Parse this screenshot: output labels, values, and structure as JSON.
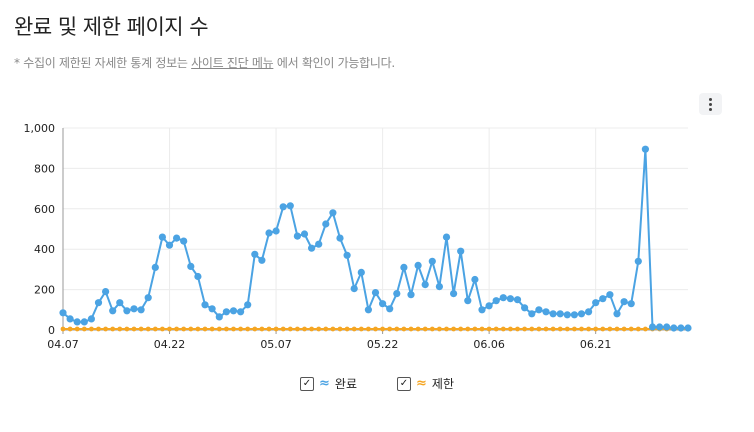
{
  "page": {
    "title": "완료 및 제한 페이지 수",
    "note_prefix": "* 수집이 제한된 자세한 통계 정보는",
    "note_link": "사이트 진단 메뉴",
    "note_suffix": "에서 확인이 가능합니다."
  },
  "menu": {
    "icon": "more-vertical-icon"
  },
  "legend": {
    "items": [
      {
        "label": "완료",
        "checked": true,
        "color": "#4ba3e3",
        "icon": "wave-icon"
      },
      {
        "label": "제한",
        "checked": true,
        "color": "#f5a623",
        "icon": "wave-icon"
      }
    ]
  },
  "chart_data": {
    "type": "line",
    "ylim": [
      0,
      1000
    ],
    "y_ticks": [
      "0",
      "200",
      "400",
      "600",
      "800",
      "1,000"
    ],
    "x_ticks": [
      {
        "label": "04.07",
        "index": 0
      },
      {
        "label": "04.22",
        "index": 15
      },
      {
        "label": "05.07",
        "index": 30
      },
      {
        "label": "05.22",
        "index": 45
      },
      {
        "label": "06.06",
        "index": 60
      },
      {
        "label": "06.21",
        "index": 75
      }
    ],
    "grid": true,
    "legend_position": "bottom",
    "series": [
      {
        "name": "완료",
        "color": "#4ba3e3",
        "values": [
          85,
          55,
          40,
          40,
          55,
          135,
          190,
          95,
          135,
          95,
          105,
          100,
          160,
          310,
          460,
          420,
          455,
          440,
          315,
          265,
          125,
          105,
          65,
          90,
          95,
          90,
          125,
          375,
          345,
          480,
          490,
          610,
          615,
          465,
          475,
          405,
          425,
          525,
          580,
          455,
          370,
          205,
          285,
          100,
          185,
          130,
          105,
          180,
          310,
          175,
          320,
          225,
          340,
          215,
          460,
          180,
          390,
          145,
          250,
          100,
          120,
          145,
          160,
          155,
          150,
          110,
          80,
          100,
          90,
          80,
          80,
          75,
          75,
          80,
          90,
          135,
          155,
          175,
          80,
          140,
          130,
          340,
          895,
          15,
          15,
          15,
          10,
          10,
          10
        ]
      },
      {
        "name": "제한",
        "color": "#f5a623",
        "values": [
          5,
          5,
          5,
          5,
          5,
          5,
          5,
          5,
          5,
          5,
          5,
          5,
          5,
          5,
          5,
          5,
          5,
          5,
          5,
          5,
          5,
          5,
          5,
          5,
          5,
          5,
          5,
          5,
          5,
          5,
          5,
          5,
          5,
          5,
          5,
          5,
          5,
          5,
          5,
          5,
          5,
          5,
          5,
          5,
          5,
          5,
          5,
          5,
          5,
          5,
          5,
          5,
          5,
          5,
          5,
          5,
          5,
          5,
          5,
          5,
          5,
          5,
          5,
          5,
          5,
          5,
          5,
          5,
          5,
          5,
          5,
          5,
          5,
          5,
          5,
          5,
          5,
          5,
          5,
          5,
          5,
          5,
          5,
          5,
          5,
          5,
          5,
          5,
          5
        ]
      }
    ]
  }
}
